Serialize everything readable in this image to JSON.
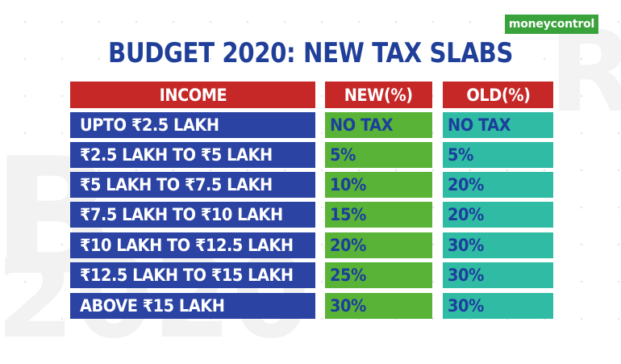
{
  "brand": {
    "logo_text": "moneycontrol",
    "logo_color": "#3aa23b"
  },
  "title": "BUDGET 2020: NEW TAX SLABS",
  "colors": {
    "title": "#1f3f99",
    "header_bg": "#c62828",
    "income_bg": "#2b43a3",
    "new_bg": "#59b336",
    "old_bg": "#30bba4"
  },
  "table": {
    "headers": {
      "income": "INCOME",
      "new": "NEW(%)",
      "old": "OLD(%)"
    },
    "rows": [
      {
        "income": "UPTO ₹2.5 LAKH",
        "new": "NO TAX",
        "old": "NO TAX"
      },
      {
        "income": "₹2.5 LAKH TO ₹5 LAKH",
        "new": "5%",
        "old": "5%"
      },
      {
        "income": "₹5 LAKH TO ₹7.5 LAKH",
        "new": "10%",
        "old": "20%"
      },
      {
        "income": "₹7.5 LAKH TO ₹10 LAKH",
        "new": "15%",
        "old": "20%"
      },
      {
        "income": "₹10 LAKH TO ₹12.5 LAKH",
        "new": "20%",
        "old": "30%"
      },
      {
        "income": "₹12.5 LAKH TO ₹15 LAKH",
        "new": "25%",
        "old": "30%"
      },
      {
        "income": "ABOVE ₹15 LAKH",
        "new": "30%",
        "old": "30%"
      }
    ]
  }
}
